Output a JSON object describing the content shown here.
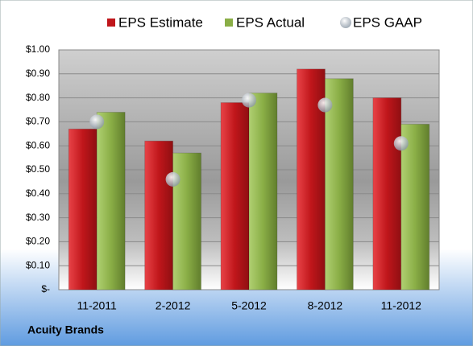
{
  "chart_data": {
    "type": "bar",
    "categories": [
      "11-2011",
      "2-2012",
      "5-2012",
      "8-2012",
      "11-2012"
    ],
    "series": [
      {
        "name": "EPS Estimate",
        "color": "#c0161b",
        "values": [
          0.67,
          0.62,
          0.78,
          0.92,
          0.8
        ]
      },
      {
        "name": "EPS Actual",
        "color": "#8aae46",
        "values": [
          0.74,
          0.57,
          0.82,
          0.88,
          0.69
        ]
      },
      {
        "name": "EPS GAAP",
        "type": "scatter",
        "color": "#a9b3bd",
        "values": [
          0.7,
          0.46,
          0.79,
          0.77,
          0.61
        ]
      }
    ],
    "ylim": [
      0,
      1.0
    ],
    "yticks": [
      {
        "value": 0,
        "label": "$-"
      },
      {
        "value": 0.1,
        "label": "$0.10"
      },
      {
        "value": 0.2,
        "label": "$0.20"
      },
      {
        "value": 0.3,
        "label": "$0.30"
      },
      {
        "value": 0.4,
        "label": "$0.40"
      },
      {
        "value": 0.5,
        "label": "$0.50"
      },
      {
        "value": 0.6,
        "label": "$0.60"
      },
      {
        "value": 0.7,
        "label": "$0.70"
      },
      {
        "value": 0.8,
        "label": "$0.80"
      },
      {
        "value": 0.9,
        "label": "$0.90"
      },
      {
        "value": 1.0,
        "label": "$1.00"
      }
    ],
    "grid": true,
    "legend": "top",
    "footer": "Acuity Brands"
  }
}
